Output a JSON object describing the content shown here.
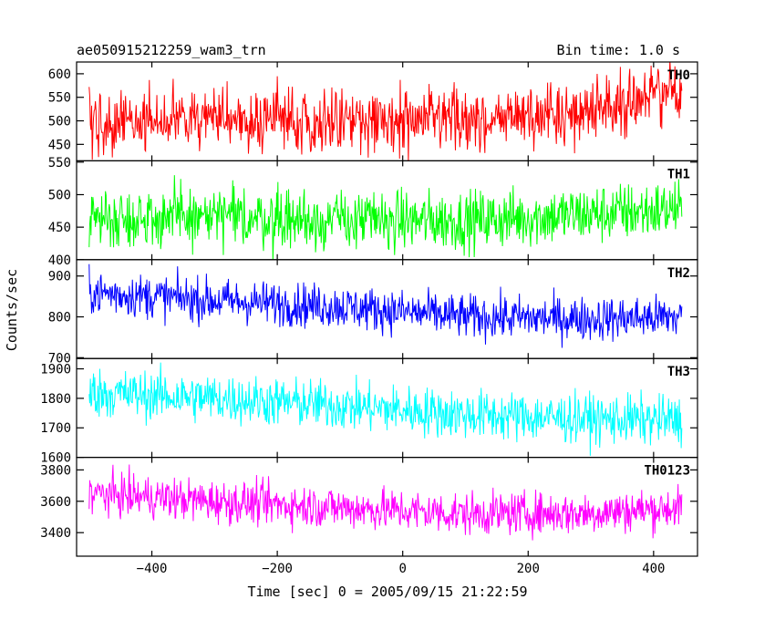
{
  "header": {
    "left": "ae050915212259_wam3_trn",
    "right": "Bin time: 1.0 s"
  },
  "chart_data": {
    "type": "line",
    "title": "ae050915212259_wam3_trn",
    "subtitle": "Bin time: 1.0 s",
    "xlabel": "Time [sec] 0 = 2005/09/15 21:22:59",
    "ylabel": "Counts/sec",
    "xlim": [
      -520,
      470
    ],
    "x_range": [
      -500,
      445
    ],
    "xticks": [
      -400,
      -200,
      0,
      200,
      400
    ],
    "grid": false,
    "panels": [
      {
        "name": "TH0",
        "color": "#ff0000",
        "ylim": [
          415,
          625
        ],
        "yticks": [
          450,
          500,
          550,
          600
        ],
        "trend": [
          [
            -500,
            500
          ],
          [
            -300,
            505
          ],
          [
            -100,
            500
          ],
          [
            100,
            500
          ],
          [
            200,
            508
          ],
          [
            300,
            525
          ],
          [
            350,
            540
          ],
          [
            445,
            565
          ]
        ],
        "noise_sd": 32
      },
      {
        "name": "TH1",
        "color": "#00ff00",
        "ylim": [
          400,
          552
        ],
        "yticks": [
          400,
          450,
          500,
          550
        ],
        "trend": [
          [
            -500,
            465
          ],
          [
            -300,
            465
          ],
          [
            -100,
            460
          ],
          [
            100,
            460
          ],
          [
            300,
            470
          ],
          [
            445,
            478
          ]
        ],
        "noise_sd": 23
      },
      {
        "name": "TH2",
        "color": "#0000ff",
        "ylim": [
          698,
          940
        ],
        "yticks": [
          700,
          800,
          900
        ],
        "trend": [
          [
            -500,
            860
          ],
          [
            -300,
            840
          ],
          [
            -100,
            825
          ],
          [
            100,
            800
          ],
          [
            300,
            795
          ],
          [
            445,
            800
          ]
        ],
        "noise_sd": 27
      },
      {
        "name": "TH3",
        "color": "#00ffff",
        "ylim": [
          1600,
          1935
        ],
        "yticks": [
          1600,
          1700,
          1800,
          1900
        ],
        "trend": [
          [
            -500,
            1820
          ],
          [
            -300,
            1800
          ],
          [
            -100,
            1775
          ],
          [
            100,
            1745
          ],
          [
            300,
            1730
          ],
          [
            445,
            1725
          ]
        ],
        "noise_sd": 42
      },
      {
        "name": "TH0123",
        "color": "#ff00ff",
        "ylim": [
          3250,
          3880
        ],
        "yticks": [
          3400,
          3600,
          3800
        ],
        "trend": [
          [
            -500,
            3650
          ],
          [
            -300,
            3600
          ],
          [
            -100,
            3560
          ],
          [
            100,
            3520
          ],
          [
            300,
            3525
          ],
          [
            445,
            3560
          ]
        ],
        "noise_sd": 68
      }
    ]
  }
}
